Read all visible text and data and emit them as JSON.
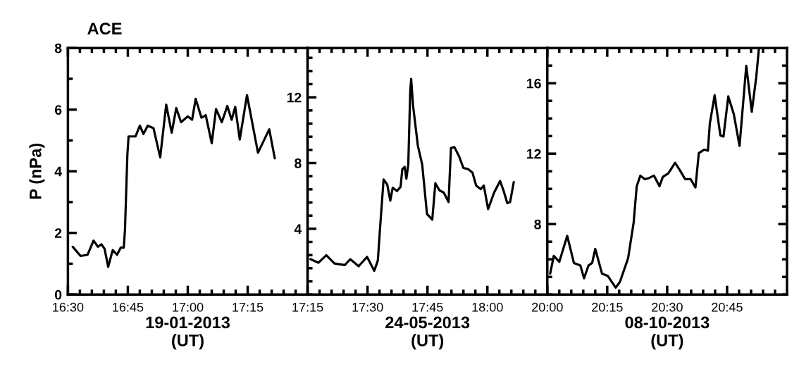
{
  "chart_data": [
    {
      "type": "line",
      "title": "ACE",
      "ylabel": "P (nPa)",
      "xlabel": "19-01-2013\n(UT)",
      "x": [
        16.52,
        16.553,
        16.582,
        16.607,
        16.625,
        16.64,
        16.653,
        16.668,
        16.687,
        16.705,
        16.72,
        16.733,
        16.738,
        16.743,
        16.748,
        16.753,
        16.782,
        16.8,
        16.815,
        16.833,
        16.857,
        16.885,
        16.91,
        16.933,
        16.952,
        16.972,
        17.0,
        17.018,
        17.033,
        17.057,
        17.075,
        17.1,
        17.118,
        17.142,
        17.165,
        17.183,
        17.198,
        17.217,
        17.247,
        17.293,
        17.312,
        17.34,
        17.363
      ],
      "series": [
        {
          "color": "#000000",
          "values": [
            1.55,
            1.25,
            1.29,
            1.75,
            1.55,
            1.63,
            1.48,
            0.9,
            1.44,
            1.29,
            1.52,
            1.52,
            2.09,
            3.31,
            4.52,
            5.13,
            5.13,
            5.48,
            5.21,
            5.48,
            5.4,
            4.45,
            6.16,
            5.25,
            6.05,
            5.59,
            5.78,
            5.67,
            6.35,
            5.74,
            5.82,
            4.91,
            6.02,
            5.59,
            6.12,
            5.67,
            6.09,
            5.03,
            6.47,
            4.6,
            4.91,
            5.36,
            4.42
          ]
        }
      ],
      "xlim": [
        16.5,
        17.5
      ],
      "ylim": [
        0,
        8
      ],
      "xticks": [
        {
          "value": 16.5,
          "label": "16:30"
        },
        {
          "value": 16.55,
          "label": null
        },
        {
          "value": 16.6,
          "label": null
        },
        {
          "value": 16.65,
          "label": null
        },
        {
          "value": 16.7,
          "label": null
        },
        {
          "value": 16.75,
          "label": "16:45"
        },
        {
          "value": 16.8,
          "label": null
        },
        {
          "value": 16.85,
          "label": null
        },
        {
          "value": 16.9,
          "label": null
        },
        {
          "value": 16.95,
          "label": null
        },
        {
          "value": 17.0,
          "label": "17:00"
        },
        {
          "value": 17.05,
          "label": null
        },
        {
          "value": 17.1,
          "label": null
        },
        {
          "value": 17.15,
          "label": null
        },
        {
          "value": 17.2,
          "label": null
        },
        {
          "value": 17.25,
          "label": "17:15"
        },
        {
          "value": 17.3,
          "label": null
        },
        {
          "value": 17.35,
          "label": null
        },
        {
          "value": 17.4,
          "label": null
        },
        {
          "value": 17.45,
          "label": null
        }
      ],
      "yticks": [
        0,
        {
          "value": 1,
          "label": null
        },
        2,
        {
          "value": 3,
          "label": null
        },
        4,
        {
          "value": 5,
          "label": null
        },
        6,
        {
          "value": 7,
          "label": null
        },
        8
      ]
    },
    {
      "type": "line",
      "xlabel": "24-05-2013\n(UT)",
      "x": [
        17.262,
        17.295,
        17.328,
        17.362,
        17.405,
        17.428,
        17.463,
        17.498,
        17.528,
        17.543,
        17.552,
        17.567,
        17.582,
        17.595,
        17.605,
        17.623,
        17.638,
        17.645,
        17.655,
        17.662,
        17.67,
        17.678,
        17.682,
        17.69,
        17.71,
        17.728,
        17.748,
        17.77,
        17.783,
        17.8,
        17.818,
        17.838,
        17.848,
        17.862,
        17.882,
        17.9,
        17.92,
        17.938,
        17.953,
        17.972,
        17.985,
        18.003,
        18.028,
        18.053,
        18.067,
        18.083,
        18.095,
        18.11
      ],
      "series": [
        {
          "color": "#000000",
          "values": [
            2.15,
            1.93,
            2.39,
            1.89,
            1.79,
            2.15,
            1.72,
            2.29,
            1.44,
            2.07,
            4.0,
            7.0,
            6.7,
            5.71,
            6.5,
            6.3,
            6.56,
            7.62,
            7.77,
            7.05,
            7.91,
            12.33,
            13.12,
            11.48,
            9.05,
            7.91,
            4.9,
            4.56,
            6.77,
            6.34,
            6.2,
            5.63,
            8.91,
            8.98,
            8.41,
            7.7,
            7.63,
            7.41,
            6.63,
            6.41,
            6.63,
            5.2,
            6.2,
            6.91,
            6.34,
            5.56,
            5.63,
            6.84
          ]
        }
      ],
      "xlim": [
        17.25,
        18.25
      ],
      "ylim": [
        0,
        15
      ],
      "xticks": [
        {
          "value": 17.25,
          "label": "17:15"
        },
        {
          "value": 17.3,
          "label": null
        },
        {
          "value": 17.35,
          "label": null
        },
        {
          "value": 17.4,
          "label": null
        },
        {
          "value": 17.45,
          "label": null
        },
        {
          "value": 17.5,
          "label": "17:30"
        },
        {
          "value": 17.55,
          "label": null
        },
        {
          "value": 17.6,
          "label": null
        },
        {
          "value": 17.65,
          "label": null
        },
        {
          "value": 17.7,
          "label": null
        },
        {
          "value": 17.75,
          "label": "17:45"
        },
        {
          "value": 17.8,
          "label": null
        },
        {
          "value": 17.85,
          "label": null
        },
        {
          "value": 17.9,
          "label": null
        },
        {
          "value": 17.95,
          "label": null
        },
        {
          "value": 18.0,
          "label": "18:00"
        },
        {
          "value": 18.05,
          "label": null
        },
        {
          "value": 18.1,
          "label": null
        },
        {
          "value": 18.15,
          "label": null
        },
        {
          "value": 18.2,
          "label": null
        }
      ],
      "yticks": [
        {
          "value": 0,
          "label": null
        },
        {
          "value": 0.8,
          "label": null
        },
        {
          "value": 1.6,
          "label": null
        },
        {
          "value": 2.4,
          "label": null
        },
        {
          "value": 3.2,
          "label": null
        },
        4,
        {
          "value": 4.8,
          "label": null
        },
        {
          "value": 5.6,
          "label": null
        },
        {
          "value": 6.4,
          "label": null
        },
        {
          "value": 7.2,
          "label": null
        },
        8,
        {
          "value": 8.8,
          "label": null
        },
        {
          "value": 9.6,
          "label": null
        },
        {
          "value": 10.4,
          "label": null
        },
        {
          "value": 11.2,
          "label": null
        },
        12,
        {
          "value": 12.8,
          "label": null
        },
        {
          "value": 13.6,
          "label": null
        },
        {
          "value": 14.4,
          "label": null
        }
      ]
    },
    {
      "type": "line",
      "xlabel": "08-10-2013\n(UT)",
      "x": [
        20.012,
        20.027,
        20.05,
        20.083,
        20.111,
        20.138,
        20.153,
        20.172,
        20.187,
        20.2,
        20.228,
        20.252,
        20.285,
        20.303,
        20.337,
        20.36,
        20.373,
        20.388,
        20.407,
        20.425,
        20.445,
        20.468,
        20.482,
        20.505,
        20.533,
        20.552,
        20.575,
        20.598,
        20.618,
        20.632,
        20.655,
        20.67,
        20.678,
        20.698,
        20.722,
        20.735,
        20.755,
        20.778,
        20.802,
        20.83,
        20.853,
        20.872,
        20.883
      ],
      "series": [
        {
          "color": "#000000",
          "values": [
            5.19,
            6.19,
            5.86,
            7.33,
            5.79,
            5.65,
            4.92,
            5.65,
            5.79,
            6.59,
            5.19,
            5.06,
            4.39,
            4.72,
            6.06,
            8.07,
            10.15,
            10.75,
            10.55,
            10.62,
            10.75,
            10.15,
            10.68,
            10.88,
            11.48,
            11.08,
            10.55,
            10.55,
            10.08,
            12.03,
            12.23,
            12.17,
            13.71,
            15.32,
            13.04,
            12.97,
            15.25,
            14.25,
            12.44,
            16.99,
            14.38,
            16.39,
            18.0
          ]
        }
      ],
      "xlim": [
        20.0,
        21.0
      ],
      "ylim": [
        4,
        18
      ],
      "xticks": [
        {
          "value": 20.0,
          "label": "20:00"
        },
        {
          "value": 20.05,
          "label": null
        },
        {
          "value": 20.1,
          "label": null
        },
        {
          "value": 20.15,
          "label": null
        },
        {
          "value": 20.2,
          "label": null
        },
        {
          "value": 20.25,
          "label": "20:15"
        },
        {
          "value": 20.3,
          "label": null
        },
        {
          "value": 20.35,
          "label": null
        },
        {
          "value": 20.4,
          "label": null
        },
        {
          "value": 20.45,
          "label": null
        },
        {
          "value": 20.5,
          "label": "20:30"
        },
        {
          "value": 20.55,
          "label": null
        },
        {
          "value": 20.6,
          "label": null
        },
        {
          "value": 20.65,
          "label": null
        },
        {
          "value": 20.7,
          "label": null
        },
        {
          "value": 20.75,
          "label": "20:45"
        },
        {
          "value": 20.8,
          "label": null
        },
        {
          "value": 20.85,
          "label": null
        },
        {
          "value": 20.9,
          "label": null
        },
        {
          "value": 20.95,
          "label": null
        }
      ],
      "yticks": [
        {
          "value": 4,
          "label": null
        },
        {
          "value": 5,
          "label": null
        },
        {
          "value": 6,
          "label": null
        },
        {
          "value": 7,
          "label": null
        },
        8,
        {
          "value": 9,
          "label": null
        },
        {
          "value": 10,
          "label": null
        },
        {
          "value": 11,
          "label": null
        },
        12,
        {
          "value": 13,
          "label": null
        },
        {
          "value": 14,
          "label": null
        },
        {
          "value": 15,
          "label": null
        },
        16,
        {
          "value": 17,
          "label": null
        }
      ]
    }
  ]
}
